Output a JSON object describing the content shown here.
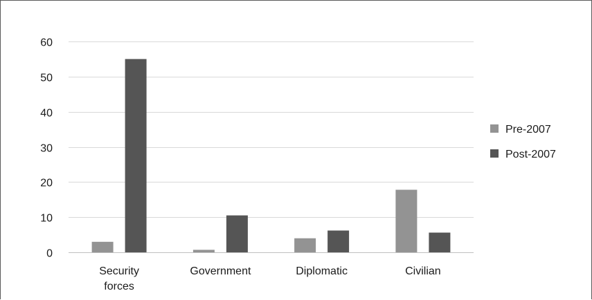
{
  "chart_data": {
    "type": "bar",
    "categories": [
      [
        "Security",
        "forces"
      ],
      [
        "Government"
      ],
      [
        "Diplomatic"
      ],
      [
        "Civilian"
      ]
    ],
    "series": [
      {
        "name": "Pre-2007",
        "values": [
          3,
          0.7,
          4,
          17.8
        ],
        "color": "#939393"
      },
      {
        "name": "Post-2007",
        "values": [
          55,
          10.5,
          6.2,
          5.6
        ],
        "color": "#555555"
      }
    ],
    "ylim": [
      0,
      60
    ],
    "yticks": [
      "0",
      "10",
      "20",
      "30",
      "40",
      "50",
      "60"
    ],
    "grid": true,
    "legend_position": "right",
    "title": "",
    "xlabel": "",
    "ylabel": ""
  }
}
